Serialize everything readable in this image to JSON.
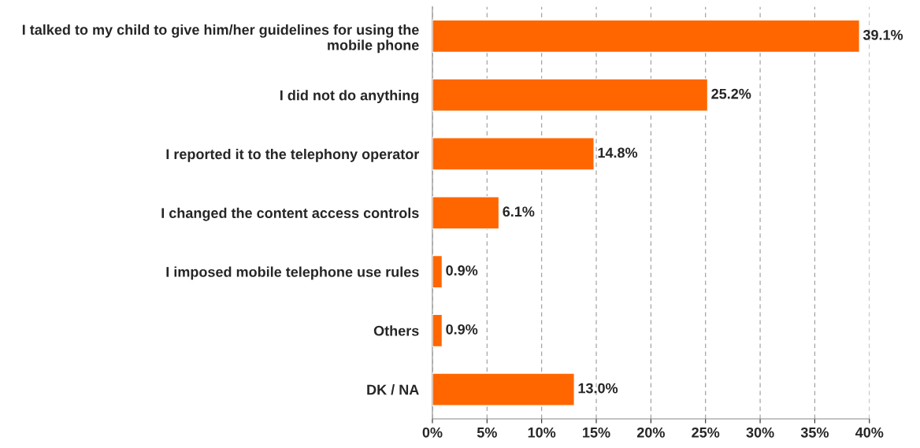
{
  "chart_data": {
    "type": "bar",
    "orientation": "horizontal",
    "categories": [
      "I talked to my child to give him/her guidelines for using the mobile phone",
      "I did not do anything",
      "I reported it to the telephony operator",
      "I changed the content access controls",
      "I imposed mobile telephone use rules",
      "Others",
      "DK / NA"
    ],
    "values": [
      39.1,
      25.2,
      14.8,
      6.1,
      0.9,
      0.9,
      13.0
    ],
    "value_labels": [
      "39.1%",
      "25.2%",
      "14.8%",
      "6.1%",
      "0.9%",
      "0.9%",
      "13.0%"
    ],
    "color": "#ff6600",
    "xlim": [
      0,
      40
    ],
    "xticks": [
      {
        "value": 0,
        "label": "0%"
      },
      {
        "value": 5,
        "label": "5%"
      },
      {
        "value": 10,
        "label": "10%"
      },
      {
        "value": 15,
        "label": "15%"
      },
      {
        "value": 20,
        "label": "20%"
      },
      {
        "value": 25,
        "label": "25%"
      },
      {
        "value": 30,
        "label": "30%"
      },
      {
        "value": 35,
        "label": "35%"
      },
      {
        "value": 40,
        "label": "40%"
      }
    ],
    "grid": "x",
    "legend": false
  }
}
